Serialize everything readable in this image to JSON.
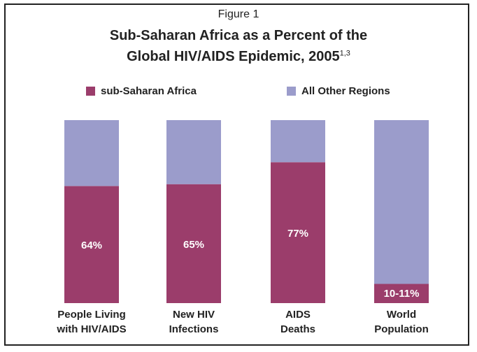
{
  "chart_data": {
    "type": "bar",
    "stacked": true,
    "figure_label": "Figure 1",
    "title_line1": "Sub-Saharan Africa as a Percent of the",
    "title_line2": "Global HIV/AIDS Epidemic, 2005",
    "title_superscript": "1,3",
    "categories": [
      [
        "People Living",
        "with HIV/AIDS"
      ],
      [
        "New HIV",
        "Infections"
      ],
      [
        "AIDS",
        "Deaths"
      ],
      [
        "World",
        "Population"
      ]
    ],
    "series": [
      {
        "name": "sub-Saharan Africa",
        "color": "#9b3d6b",
        "values": [
          64,
          65,
          77,
          10.5
        ],
        "labels": [
          "64%",
          "65%",
          "77%",
          "10-11%"
        ]
      },
      {
        "name": "All Other Regions",
        "color": "#9b9ccb",
        "values": [
          36,
          35,
          23,
          89.5
        ]
      }
    ],
    "ylim": [
      0,
      100
    ],
    "grid": false,
    "legend_position": "top"
  }
}
